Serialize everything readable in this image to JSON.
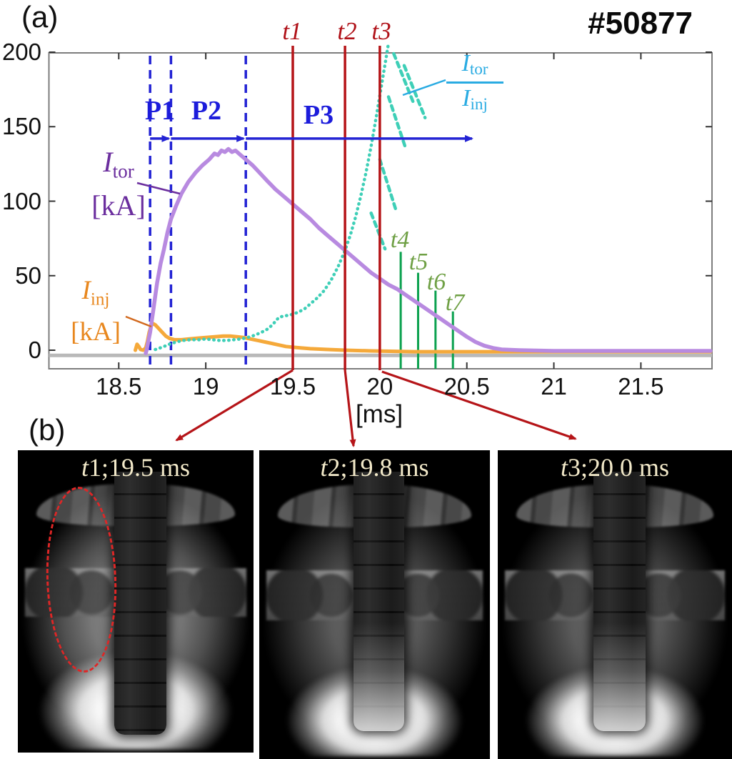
{
  "panel_a_label": "(a)",
  "panel_b_label": "(b)",
  "shot_number": "#50877",
  "axis": {
    "x_tick_labels": [
      "18.5",
      "19",
      "19.5",
      "20",
      "20.5",
      "21",
      "21.5"
    ],
    "y_tick_labels": [
      "200",
      "150",
      "100",
      "50",
      "0"
    ],
    "x_unit": "[ms]"
  },
  "phases": {
    "p1": "P1",
    "p2": "P2",
    "p3": "P3"
  },
  "time_marker_labels": {
    "t1_sym": "t",
    "t1_num": "1",
    "t2_sym": "t",
    "t2_num": "2",
    "t3_sym": "t",
    "t3_num": "3",
    "t4_sym": "t",
    "t4_num": "4",
    "t5_sym": "t",
    "t5_num": "5",
    "t6_sym": "t",
    "t6_num": "6",
    "t7_sym": "t",
    "t7_num": "7"
  },
  "labels": {
    "itor_sym": "I",
    "itor_sub": "tor",
    "itor_unit": "[kA]",
    "iinj_sym": "I",
    "iinj_sub": "inj",
    "iinj_unit": "[kA]",
    "ratio_top_sym": "I",
    "ratio_top_sub": "tor",
    "ratio_bot_sym": "I",
    "ratio_bot_sub": "inj"
  },
  "colors": {
    "tor_curve": "#b88ae0",
    "tor_label": "#6b2e9e",
    "inj_curve": "#f5a93a",
    "inj_label": "#e8871e",
    "inj_leader": "#d2691e",
    "ratio_curve": "#3ecfb7",
    "ratio_label": "#29abe2",
    "phase_blue": "#2323d4",
    "marker_red": "#b51418",
    "green_line": "#0aa14e",
    "green_label": "#6fa045",
    "baseline_gray": "#b9b9b9",
    "axis_gray": "#7d7d7d",
    "tick_dark": "#333333"
  },
  "images": [
    {
      "title_sym": "t",
      "title_rest": "1;19.5 ms",
      "has_red_ellipse": true
    },
    {
      "title_sym": "t",
      "title_rest": "2;19.8 ms",
      "has_red_ellipse": false
    },
    {
      "title_sym": "t",
      "title_rest": "3;20.0 ms",
      "has_red_ellipse": false
    }
  ],
  "chart_data": {
    "type": "line",
    "title": "#50877",
    "xlabel": "[ms]",
    "ylabel": "[kA]",
    "xlim": [
      18.09,
      21.91
    ],
    "ylim": [
      -12.5,
      200
    ],
    "x_ticks": [
      18.5,
      19,
      19.5,
      20,
      20.5,
      21,
      21.5
    ],
    "y_ticks": [
      200,
      150,
      100,
      50,
      0
    ],
    "grid": false,
    "legend_position": "inside top-right as fraction label",
    "baseline_y": -3.5,
    "series": [
      {
        "name": "I_tor [kA]",
        "color": "#b88ae0",
        "style": "solid",
        "points": [
          [
            18.655,
            -2
          ],
          [
            18.66,
            0
          ],
          [
            18.67,
            6
          ],
          [
            18.68,
            12
          ],
          [
            18.7,
            28
          ],
          [
            18.72,
            45
          ],
          [
            18.74,
            58
          ],
          [
            18.76,
            68
          ],
          [
            18.78,
            79
          ],
          [
            18.8,
            88
          ],
          [
            18.83,
            97
          ],
          [
            18.86,
            105
          ],
          [
            18.9,
            113
          ],
          [
            18.94,
            119
          ],
          [
            18.98,
            124
          ],
          [
            19.02,
            128
          ],
          [
            19.05,
            132
          ],
          [
            19.07,
            131
          ],
          [
            19.09,
            134
          ],
          [
            19.11,
            133
          ],
          [
            19.13,
            135
          ],
          [
            19.15,
            133
          ],
          [
            19.17,
            134
          ],
          [
            19.2,
            131
          ],
          [
            19.23,
            128
          ],
          [
            19.27,
            124
          ],
          [
            19.31,
            119
          ],
          [
            19.35,
            114
          ],
          [
            19.4,
            108
          ],
          [
            19.45,
            103
          ],
          [
            19.5,
            98
          ],
          [
            19.55,
            93
          ],
          [
            19.6,
            88
          ],
          [
            19.65,
            82
          ],
          [
            19.7,
            77
          ],
          [
            19.75,
            72
          ],
          [
            19.8,
            67
          ],
          [
            19.85,
            62
          ],
          [
            19.9,
            57
          ],
          [
            19.95,
            52
          ],
          [
            20.0,
            48
          ],
          [
            20.05,
            44
          ],
          [
            20.1,
            41
          ],
          [
            20.15,
            37
          ],
          [
            20.2,
            33
          ],
          [
            20.25,
            29
          ],
          [
            20.3,
            25
          ],
          [
            20.35,
            21
          ],
          [
            20.4,
            17
          ],
          [
            20.45,
            13
          ],
          [
            20.5,
            9
          ],
          [
            20.55,
            5.5
          ],
          [
            20.6,
            3
          ],
          [
            20.65,
            1.5
          ],
          [
            20.7,
            0.5
          ],
          [
            20.8,
            0
          ],
          [
            21.0,
            -0.5
          ],
          [
            21.3,
            -0.5
          ],
          [
            21.6,
            -0.5
          ],
          [
            21.9,
            -0.5
          ]
        ]
      },
      {
        "name": "I_inj [kA]",
        "color": "#f5a93a",
        "style": "solid",
        "points": [
          [
            18.595,
            0
          ],
          [
            18.605,
            4
          ],
          [
            18.615,
            2.5
          ],
          [
            18.625,
            0.5
          ],
          [
            18.64,
            0
          ],
          [
            18.655,
            1.5
          ],
          [
            18.665,
            6
          ],
          [
            18.675,
            12
          ],
          [
            18.685,
            16
          ],
          [
            18.695,
            18
          ],
          [
            18.71,
            17
          ],
          [
            18.73,
            14.5
          ],
          [
            18.75,
            12
          ],
          [
            18.77,
            9.5
          ],
          [
            18.79,
            8
          ],
          [
            18.82,
            7
          ],
          [
            18.86,
            7
          ],
          [
            18.9,
            7.5
          ],
          [
            18.95,
            8
          ],
          [
            19.0,
            8.5
          ],
          [
            19.05,
            9
          ],
          [
            19.1,
            9.5
          ],
          [
            19.14,
            9.5
          ],
          [
            19.18,
            9
          ],
          [
            19.22,
            8.5
          ],
          [
            19.26,
            7.5
          ],
          [
            19.3,
            6.5
          ],
          [
            19.34,
            5.5
          ],
          [
            19.38,
            4.5
          ],
          [
            19.42,
            3.5
          ],
          [
            19.46,
            2.5
          ],
          [
            19.5,
            2
          ],
          [
            19.55,
            1.5
          ],
          [
            19.6,
            1
          ],
          [
            19.7,
            0.5
          ],
          [
            19.8,
            0
          ],
          [
            19.95,
            -0.5
          ],
          [
            20.2,
            -1
          ],
          [
            20.6,
            -1
          ],
          [
            21.0,
            -1
          ],
          [
            21.5,
            -1
          ],
          [
            21.9,
            -1
          ]
        ]
      },
      {
        "name": "I_tor / I_inj (ratio)",
        "color": "#3ecfb7",
        "style": "dotted",
        "points": [
          [
            18.71,
            0.5
          ],
          [
            18.75,
            2
          ],
          [
            18.79,
            4
          ],
          [
            18.83,
            5.5
          ],
          [
            18.87,
            6.5
          ],
          [
            18.91,
            7
          ],
          [
            18.96,
            7
          ],
          [
            19.0,
            7.5
          ],
          [
            19.04,
            7
          ],
          [
            19.08,
            6.5
          ],
          [
            19.12,
            6.5
          ],
          [
            19.16,
            7
          ],
          [
            19.2,
            7.5
          ],
          [
            19.24,
            8.5
          ],
          [
            19.28,
            10
          ],
          [
            19.32,
            12
          ],
          [
            19.36,
            14.5
          ],
          [
            19.39,
            18
          ],
          [
            19.42,
            22
          ],
          [
            19.45,
            23
          ],
          [
            19.48,
            23.5
          ],
          [
            19.51,
            24.5
          ],
          [
            19.54,
            26
          ],
          [
            19.57,
            28
          ],
          [
            19.6,
            31
          ],
          [
            19.64,
            35
          ],
          [
            19.68,
            40
          ],
          [
            19.72,
            47
          ],
          [
            19.76,
            56
          ],
          [
            19.8,
            67
          ],
          [
            19.83,
            77
          ],
          [
            19.86,
            89
          ],
          [
            19.89,
            103
          ],
          [
            19.92,
            119
          ],
          [
            19.95,
            137
          ],
          [
            19.98,
            157
          ],
          [
            20.01,
            178
          ],
          [
            20.03,
            192
          ],
          [
            20.05,
            206
          ]
        ]
      }
    ],
    "ratio_scatter_segments": [
      [
        [
          20.08,
          199
        ],
        [
          20.19,
          167
        ]
      ],
      [
        [
          20.14,
          191
        ],
        [
          20.26,
          156
        ]
      ],
      [
        [
          20.05,
          170
        ],
        [
          20.15,
          135
        ]
      ],
      [
        [
          20.0,
          128
        ],
        [
          20.09,
          95
        ]
      ],
      [
        [
          19.95,
          92
        ],
        [
          20.03,
          68
        ]
      ]
    ],
    "phase_boundaries_ms": [
      18.68,
      18.8,
      19.23
    ],
    "phase_arrow": {
      "y_kA": 142,
      "start_ms": 18.68,
      "end_ms": 20.53
    },
    "red_time_lines_ms": {
      "t1": 19.5,
      "t2": 19.8,
      "t3": 20.0
    },
    "green_time_lines": [
      {
        "name": "t4",
        "ms": 20.12,
        "top_kA": 66
      },
      {
        "name": "t5",
        "ms": 20.22,
        "top_kA": 52
      },
      {
        "name": "t6",
        "ms": 20.32,
        "top_kA": 40
      },
      {
        "name": "t7",
        "ms": 20.42,
        "top_kA": 26
      }
    ]
  }
}
